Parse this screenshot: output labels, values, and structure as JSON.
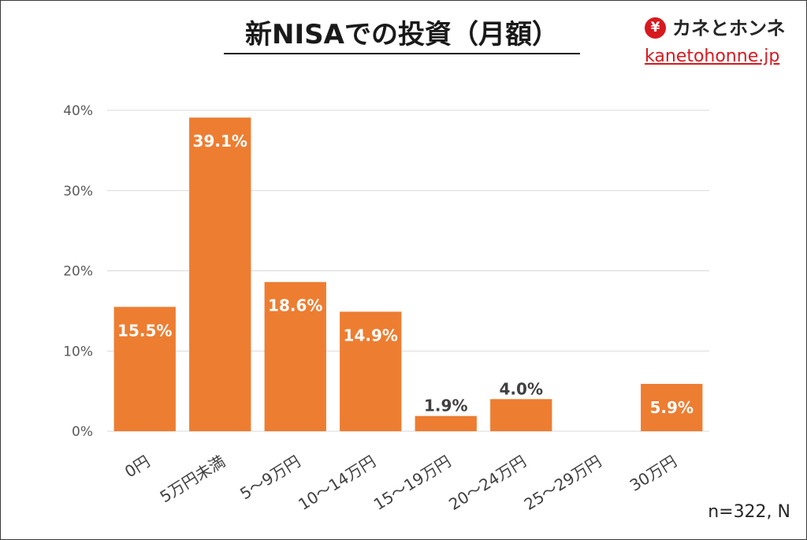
{
  "chart_data": {
    "type": "bar",
    "title": "新NISAでの投資（月額）",
    "xlabel": "",
    "ylabel": "",
    "categories": [
      "0円",
      "5万円未満",
      "5～9万円",
      "10～14万円",
      "15～19万円",
      "20～24万円",
      "25～29万円",
      "30万円"
    ],
    "values": [
      15.5,
      39.1,
      18.6,
      14.9,
      1.9,
      4.0,
      0,
      5.9
    ],
    "data_labels": [
      "15.5%",
      "39.1%",
      "18.6%",
      "14.9%",
      "1.9%",
      "4.0%",
      "",
      "5.9%"
    ],
    "unit": "%",
    "ylim": [
      0,
      40
    ],
    "yticks": [
      0,
      10,
      20,
      30,
      40
    ],
    "ytick_labels": [
      "0%",
      "10%",
      "20%",
      "30%",
      "40%"
    ],
    "grid": true,
    "legend": "none",
    "bar_color": "#ed7d31"
  },
  "logo": {
    "icon": "yen-icon",
    "icon_text": "¥",
    "brand_name": "カネとホンネ",
    "site": "kanetohonne.jp"
  },
  "footnote": "n=322, N",
  "colors": {
    "brand_red": "#d7191f",
    "grid": "#d9d9d9",
    "text_dark": "#262626",
    "axis_text": "#595959",
    "category_text": "#404040",
    "label_inside": "#ffffff",
    "label_outside": "#404040"
  }
}
